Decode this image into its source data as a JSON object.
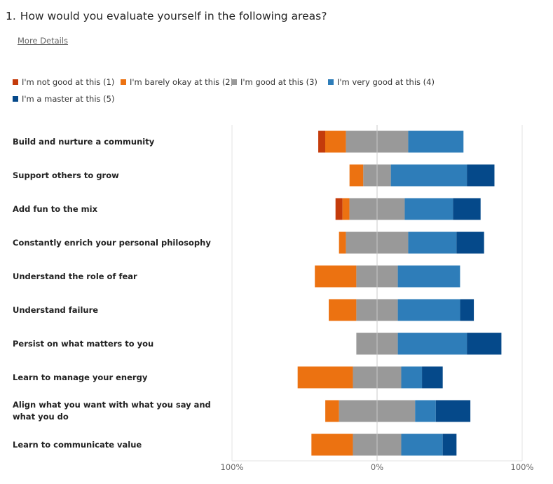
{
  "question": {
    "number": "1.",
    "text": "How would you evaluate yourself in the following areas?"
  },
  "more_details": "More Details",
  "colors": {
    "not_good": "#C43B0B",
    "barely": "#EC7211",
    "good": "#999999",
    "very_good": "#2E7DB9",
    "master": "#05498A"
  },
  "chart_data": {
    "type": "bar",
    "orientation": "horizontal",
    "stacked": "diverging",
    "xlim": [
      -100,
      100
    ],
    "x_ticks": [
      "100%",
      "0%",
      "100%"
    ],
    "legend_position": "top",
    "series": [
      {
        "name": "I'm not good at this (1)",
        "color": "#C43B0B"
      },
      {
        "name": "I'm barely okay at this (2)",
        "color": "#EC7211"
      },
      {
        "name": "I'm good at this (3)",
        "color": "#999999"
      },
      {
        "name": "I'm very good at this (4)",
        "color": "#2E7DB9"
      },
      {
        "name": "I'm a master at this (5)",
        "color": "#05498A"
      }
    ],
    "categories": [
      "Build and nurture a community",
      "Support others to grow",
      "Add fun to the mix",
      "Constantly enrich your personal philosophy",
      "Understand the role of fear",
      "Understand failure",
      "Persist on what matters to you",
      "Learn to manage your energy",
      "Align what you want with what you say and what you do",
      "Learn to communicate value"
    ],
    "values": [
      [
        4.8,
        14.3,
        42.9,
        38.1,
        0
      ],
      [
        0,
        9.5,
        19.0,
        52.4,
        19.0
      ],
      [
        4.8,
        4.8,
        38.1,
        33.3,
        19.0
      ],
      [
        0,
        4.8,
        42.9,
        33.3,
        19.0
      ],
      [
        0,
        28.6,
        28.6,
        42.9,
        0
      ],
      [
        0,
        19.0,
        28.6,
        42.9,
        9.5
      ],
      [
        0,
        0,
        28.6,
        47.6,
        23.8
      ],
      [
        0,
        38.1,
        33.3,
        14.3,
        14.3
      ],
      [
        0,
        9.5,
        52.4,
        14.3,
        23.8
      ],
      [
        0,
        28.6,
        33.3,
        28.6,
        9.5
      ]
    ]
  }
}
